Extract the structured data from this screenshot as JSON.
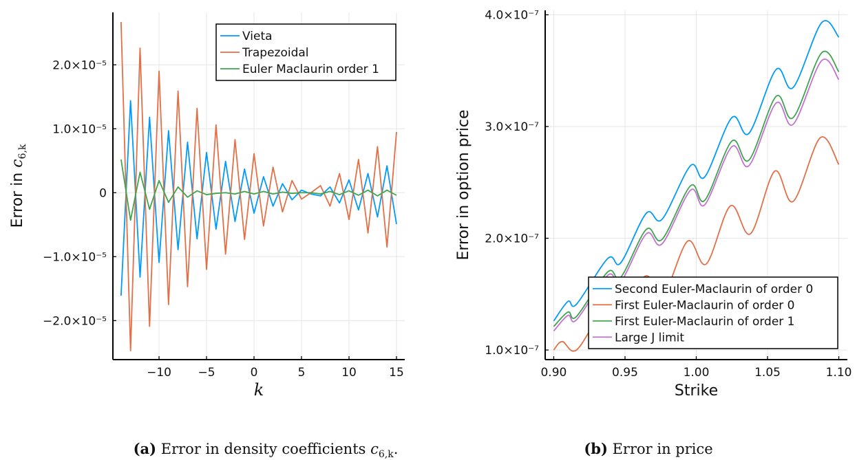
{
  "colors": {
    "blue": "#009AFA",
    "orange": "#E26F46",
    "green": "#3EA44E",
    "purple": "#C271D2"
  },
  "captions": {
    "a_label": "(a)",
    "a_text": "Error in density coefficients ",
    "a_math": "c",
    "a_sub": "6,k",
    "a_end": ".",
    "b_label": "(b)",
    "b_text": "Error in price"
  },
  "chart_data": [
    {
      "type": "line",
      "title": "",
      "xlabel": "k",
      "ylabel": "Error in c",
      "ylabel_sub": "6,k",
      "xlim": [
        -14.86,
        15.87
      ],
      "ylim": [
        -2.61e-05,
        2.82e-05
      ],
      "grid": true,
      "legend_position": "top-right",
      "xticks": [
        {
          "v": -10,
          "label": "−10"
        },
        {
          "v": -5,
          "label": "−5"
        },
        {
          "v": 0,
          "label": "0"
        },
        {
          "v": 5,
          "label": "5"
        },
        {
          "v": 10,
          "label": "10"
        },
        {
          "v": 15,
          "label": "15"
        }
      ],
      "yticks": [
        {
          "v": -2e-05,
          "label": "−2.0×10⁻⁵"
        },
        {
          "v": -1e-05,
          "label": "−1.0×10⁻⁵"
        },
        {
          "v": 0,
          "label": "0"
        },
        {
          "v": 1e-05,
          "label": "1.0×10⁻⁵"
        },
        {
          "v": 2e-05,
          "label": "2.0×10⁻⁵"
        }
      ],
      "x": [
        -14,
        -13,
        -12,
        -11,
        -10,
        -9,
        -8,
        -7,
        -6,
        -5,
        -4,
        -3,
        -2,
        -1,
        0,
        1,
        2,
        3,
        4,
        5,
        6,
        7,
        8,
        9,
        10,
        11,
        12,
        13,
        14,
        15
      ],
      "y_scale": 1e-05,
      "series": [
        {
          "name": "Vieta",
          "color": "#009AFA",
          "values": [
            -1.61,
            1.44,
            -1.32,
            1.18,
            -1.09,
            0.97,
            -0.89,
            0.79,
            -0.72,
            0.63,
            -0.57,
            0.49,
            -0.45,
            0.37,
            -0.32,
            0.25,
            -0.21,
            0.14,
            -0.11,
            0.04,
            -0.02,
            -0.05,
            0.09,
            -0.16,
            0.2,
            -0.27,
            0.3,
            -0.38,
            0.42,
            -0.49
          ]
        },
        {
          "name": "Trapezoidal",
          "color": "#E26F46",
          "values": [
            2.67,
            -2.47,
            2.26,
            -2.09,
            1.9,
            -1.75,
            1.59,
            -1.47,
            1.32,
            -1.2,
            1.06,
            -0.96,
            0.83,
            -0.73,
            0.61,
            -0.52,
            0.4,
            -0.3,
            0.19,
            -0.1,
            0.0,
            0.11,
            -0.21,
            0.3,
            -0.42,
            0.52,
            -0.63,
            0.72,
            -0.85,
            0.95
          ]
        },
        {
          "name": "Euler Maclaurin order 1",
          "color": "#3EA44E",
          "values": [
            0.52,
            -0.43,
            0.32,
            -0.26,
            0.19,
            -0.15,
            0.09,
            -0.07,
            0.03,
            -0.03,
            -0.01,
            0.0,
            -0.02,
            0.02,
            -0.02,
            0.02,
            -0.02,
            0.01,
            -0.01,
            0.0,
            0.0,
            -0.02,
            0.02,
            -0.03,
            0.03,
            -0.04,
            0.04,
            -0.05,
            0.04,
            -0.04
          ]
        }
      ]
    },
    {
      "type": "line",
      "title": "",
      "xlabel": "Strike",
      "ylabel": "Error in option price",
      "xlim": [
        0.894,
        1.106
      ],
      "ylim": [
        9.14e-08,
        4.04e-07
      ],
      "grid": true,
      "legend_position": "bottom-right",
      "xticks": [
        {
          "v": 0.9,
          "label": "0.90"
        },
        {
          "v": 0.95,
          "label": "0.95"
        },
        {
          "v": 1.0,
          "label": "1.00"
        },
        {
          "v": 1.05,
          "label": "1.05"
        },
        {
          "v": 1.1,
          "label": "1.10"
        }
      ],
      "yticks": [
        {
          "v": 1e-07,
          "label": "1.0×10⁻⁷"
        },
        {
          "v": 2e-07,
          "label": "2.0×10⁻⁷"
        },
        {
          "v": 3e-07,
          "label": "3.0×10⁻⁷"
        },
        {
          "v": 4e-07,
          "label": "4.0×10⁻⁷"
        }
      ],
      "y_scale": 1e-07,
      "series": [
        {
          "name": "Second Euler-Maclaurin of order 0",
          "color": "#009AFA",
          "x": [
            0.9,
            0.91,
            0.916,
            0.938,
            0.947,
            0.965,
            0.976,
            0.996,
            1.006,
            1.025,
            1.037,
            1.056,
            1.068,
            1.088,
            1.1
          ],
          "values": [
            1.26,
            1.435,
            1.41,
            1.82,
            1.78,
            2.225,
            2.17,
            2.65,
            2.55,
            3.08,
            2.94,
            3.51,
            3.35,
            3.93,
            3.8
          ]
        },
        {
          "name": "First Euler-Maclaurin of order 0",
          "color": "#E26F46",
          "x": [
            0.9,
            0.906,
            0.916,
            0.935,
            0.946,
            0.964,
            0.977,
            0.994,
            1.007,
            1.024,
            1.038,
            1.055,
            1.068,
            1.087,
            1.1
          ],
          "values": [
            1.0,
            1.076,
            1.0,
            1.35,
            1.25,
            1.66,
            1.5,
            1.975,
            1.77,
            2.29,
            2.04,
            2.6,
            2.33,
            2.9,
            2.66
          ]
        },
        {
          "name": "First Euler-Maclaurin of order 1",
          "color": "#3EA44E",
          "x": [
            0.9,
            0.91,
            0.916,
            0.938,
            0.947,
            0.965,
            0.976,
            0.996,
            1.006,
            1.025,
            1.037,
            1.056,
            1.068,
            1.088,
            1.1
          ],
          "values": [
            1.21,
            1.34,
            1.3,
            1.7,
            1.65,
            2.08,
            1.99,
            2.47,
            2.34,
            2.87,
            2.7,
            3.27,
            3.08,
            3.66,
            3.49
          ]
        },
        {
          "name": "Large J limit",
          "color": "#C271D2",
          "x": [
            0.9,
            0.91,
            0.916,
            0.938,
            0.947,
            0.965,
            0.976,
            0.996,
            1.006,
            1.025,
            1.037,
            1.056,
            1.068,
            1.088,
            1.1
          ],
          "values": [
            1.17,
            1.31,
            1.27,
            1.67,
            1.61,
            2.04,
            1.95,
            2.43,
            2.3,
            2.82,
            2.65,
            3.21,
            3.02,
            3.59,
            3.42
          ]
        }
      ]
    }
  ]
}
